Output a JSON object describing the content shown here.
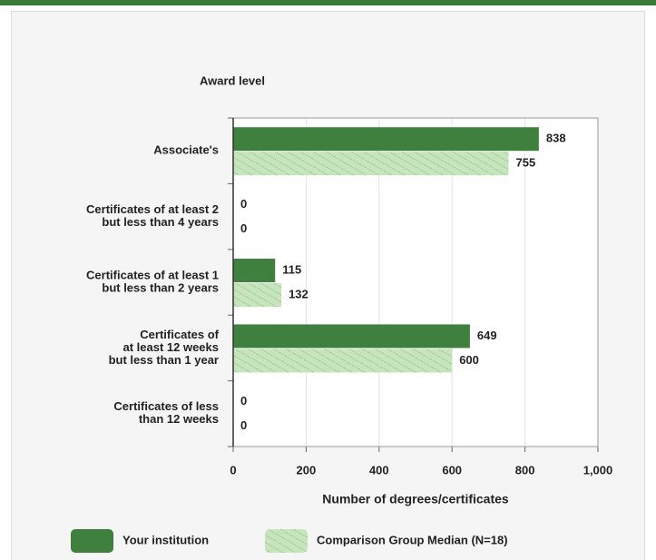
{
  "chart_data": {
    "type": "hbar",
    "ylabel": "Award level",
    "xlabel": "Number of degrees/certificates",
    "categories": [
      [
        "Associate's"
      ],
      [
        "Certificates of at least 2",
        "but less than 4 years"
      ],
      [
        "Certificates of at least 1",
        "but  less than 2 years"
      ],
      [
        "Certificates of",
        "at least 12 weeks",
        "but less than 1 year"
      ],
      [
        "Certificates of less",
        "than 12 weeks"
      ]
    ],
    "series": [
      {
        "name": "Your institution",
        "color": "#40803f",
        "hatch": false,
        "values": [
          838,
          0,
          115,
          649,
          0
        ]
      },
      {
        "name": "Comparison Group Median (N=18)",
        "color": "#c7e5bd",
        "hatch": true,
        "values": [
          755,
          0,
          132,
          600,
          0
        ]
      }
    ],
    "xlim": [
      0,
      1000
    ],
    "xticks": [
      0,
      200,
      400,
      600,
      800,
      {
        "value": 1000,
        "label": "1,000"
      }
    ],
    "grid": true
  }
}
